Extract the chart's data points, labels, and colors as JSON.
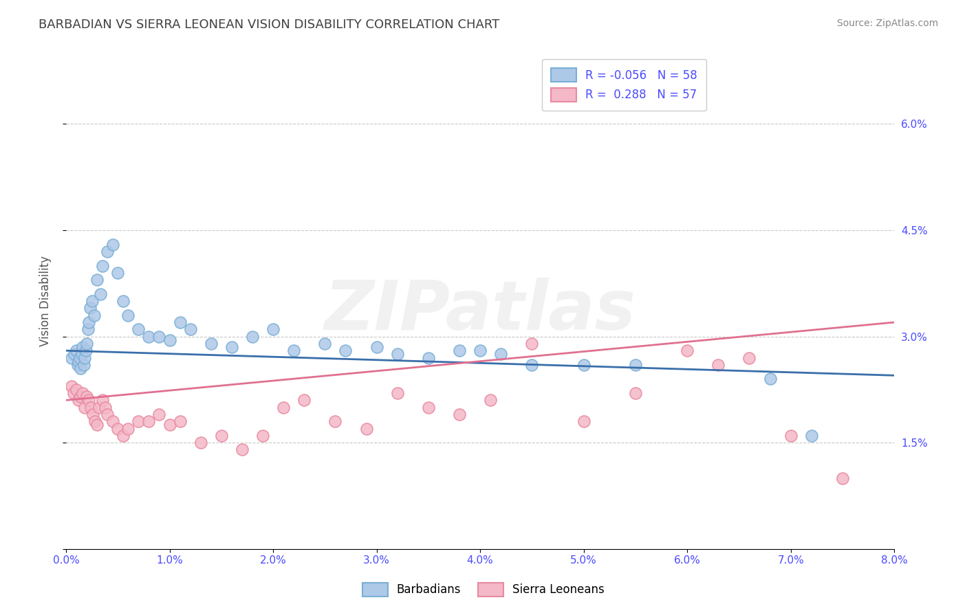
{
  "title": "BARBADIAN VS SIERRA LEONEAN VISION DISABILITY CORRELATION CHART",
  "source": "Source: ZipAtlas.com",
  "ylabel": "Vision Disability",
  "xlim": [
    0.0,
    8.0
  ],
  "ylim": [
    0.0,
    7.0
  ],
  "x_ticks": [
    0.0,
    1.0,
    2.0,
    3.0,
    4.0,
    5.0,
    6.0,
    7.0,
    8.0
  ],
  "y_ticks": [
    0.0,
    1.5,
    3.0,
    4.5,
    6.0
  ],
  "y_tick_labels_right": [
    "",
    "1.5%",
    "3.0%",
    "4.5%",
    "6.0%"
  ],
  "blue_R": -0.056,
  "blue_N": 58,
  "pink_R": 0.288,
  "pink_N": 57,
  "blue_marker_face": "#aec8e8",
  "blue_marker_edge": "#7aafd4",
  "pink_marker_face": "#f4b8c8",
  "pink_marker_edge": "#e88aa0",
  "blue_line_color": "#3a6eaa",
  "pink_line_color": "#e07090",
  "grid_color": "#c8c8c8",
  "title_color": "#404040",
  "tick_color": "#4a4aff",
  "watermark": "ZIPatlas",
  "legend_label_blue": "Barbadians",
  "legend_label_pink": "Sierra Leoneans",
  "blue_x": [
    0.05,
    0.08,
    0.1,
    0.11,
    0.12,
    0.13,
    0.14,
    0.15,
    0.16,
    0.17,
    0.18,
    0.19,
    0.2,
    0.21,
    0.22,
    0.23,
    0.25,
    0.27,
    0.3,
    0.33,
    0.35,
    0.4,
    0.45,
    0.5,
    0.55,
    0.6,
    0.7,
    0.8,
    0.9,
    1.0,
    1.1,
    1.2,
    1.4,
    1.6,
    1.8,
    2.0,
    2.2,
    2.5,
    2.7,
    3.0,
    3.2,
    3.5,
    3.8,
    4.0,
    4.2,
    4.5,
    5.0,
    5.5,
    6.8,
    7.2
  ],
  "blue_y": [
    2.7,
    2.75,
    2.8,
    2.6,
    2.65,
    2.7,
    2.55,
    2.75,
    2.85,
    2.6,
    2.7,
    2.8,
    2.9,
    3.1,
    3.2,
    3.4,
    3.5,
    3.3,
    3.8,
    3.6,
    4.0,
    4.2,
    4.3,
    3.9,
    3.5,
    3.3,
    3.1,
    3.0,
    3.0,
    2.95,
    3.2,
    3.1,
    2.9,
    2.85,
    3.0,
    3.1,
    2.8,
    2.9,
    2.8,
    2.85,
    2.75,
    2.7,
    2.8,
    2.8,
    2.75,
    2.6,
    2.6,
    2.6,
    2.4,
    1.6
  ],
  "pink_x": [
    0.05,
    0.07,
    0.1,
    0.12,
    0.14,
    0.16,
    0.18,
    0.2,
    0.22,
    0.24,
    0.26,
    0.28,
    0.3,
    0.32,
    0.35,
    0.38,
    0.4,
    0.45,
    0.5,
    0.55,
    0.6,
    0.7,
    0.8,
    0.9,
    1.0,
    1.1,
    1.3,
    1.5,
    1.7,
    1.9,
    2.1,
    2.3,
    2.6,
    2.9,
    3.2,
    3.5,
    3.8,
    4.1,
    4.5,
    5.0,
    5.5,
    6.0,
    6.3,
    6.6,
    7.0,
    7.5
  ],
  "pink_y": [
    2.3,
    2.2,
    2.25,
    2.1,
    2.15,
    2.2,
    2.0,
    2.15,
    2.1,
    2.0,
    1.9,
    1.8,
    1.75,
    2.0,
    2.1,
    2.0,
    1.9,
    1.8,
    1.7,
    1.6,
    1.7,
    1.8,
    1.8,
    1.9,
    1.75,
    1.8,
    1.5,
    1.6,
    1.4,
    1.6,
    2.0,
    2.1,
    1.8,
    1.7,
    2.2,
    2.0,
    1.9,
    2.1,
    2.9,
    1.8,
    2.2,
    2.8,
    2.6,
    2.7,
    1.6,
    1.0
  ],
  "blue_trend_start_y": 2.8,
  "blue_trend_end_y": 2.45,
  "pink_trend_start_y": 2.1,
  "pink_trend_end_y": 3.2
}
